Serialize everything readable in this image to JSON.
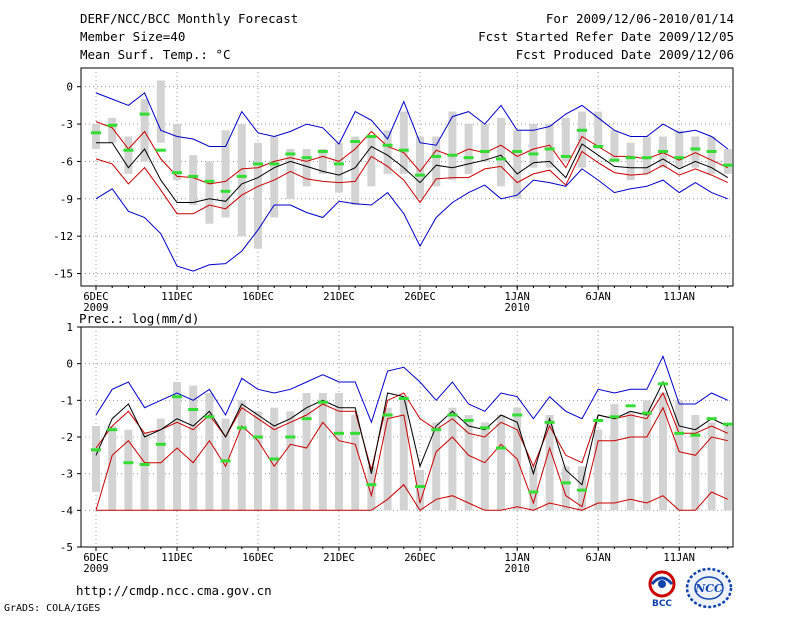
{
  "header": {
    "title": "DERF/NCC/BCC Monthly Forecast",
    "member_size": "Member Size=40",
    "variable": "Mean Surf. Temp.: °C",
    "period": "For 2009/12/06-2010/01/14",
    "start_date": "Fcst Started Refer Date 2009/12/05",
    "produced_date": "Fcst Produced Date 2009/12/06"
  },
  "footer": {
    "url": "http://cmdp.ncc.cma.gov.cn",
    "credit": "GrADS: COLA/IGES",
    "logo_bcc": "BCC",
    "logo_ncc": "NCC"
  },
  "colors": {
    "bar": "#d3d3d3",
    "obs": "#33dd33",
    "mean": "#000000",
    "band_inner": "#cc0000",
    "band_outer": "#0000cc",
    "grid": "#888888"
  },
  "chart_data": [
    {
      "type": "line",
      "title": "Mean Surf. Temp.: °C",
      "ylim": [
        -16,
        1.5
      ],
      "yticks": [
        0,
        -3,
        -6,
        -9,
        -12,
        -15
      ],
      "xlabels": [
        {
          "day": 0,
          "label": "6DEC",
          "sub": "2009"
        },
        {
          "day": 5,
          "label": "11DEC"
        },
        {
          "day": 10,
          "label": "16DEC"
        },
        {
          "day": 15,
          "label": "21DEC"
        },
        {
          "day": 20,
          "label": "26DEC"
        },
        {
          "day": 26,
          "label": "1JAN",
          "sub": "2010"
        },
        {
          "day": 31,
          "label": "6JAN"
        },
        {
          "day": 36,
          "label": "11JAN"
        }
      ],
      "x_days": [
        0,
        1,
        2,
        3,
        4,
        5,
        6,
        7,
        8,
        9,
        10,
        11,
        12,
        13,
        14,
        15,
        16,
        17,
        18,
        19,
        20,
        21,
        22,
        23,
        24,
        25,
        26,
        27,
        28,
        29,
        30,
        31,
        32,
        33,
        34,
        35,
        36,
        37,
        38,
        39
      ],
      "bar_low": [
        -5,
        -4.5,
        -7,
        -6,
        -4.5,
        -7.5,
        -9.5,
        -11,
        -10.5,
        -12,
        -13,
        -10.5,
        -9,
        -8,
        -7,
        -8.5,
        -9.5,
        -8,
        -7,
        -7,
        -9,
        -8,
        -7.5,
        -7,
        -6,
        -8,
        -9,
        -6.5,
        -6.5,
        -6,
        -6.5,
        -5,
        -6,
        -7.5,
        -7,
        -6.5,
        -6.5,
        -6.5,
        -7,
        -7
      ],
      "bar_high": [
        -3,
        -2.5,
        -4,
        -1,
        0.5,
        -3,
        -5.5,
        -6,
        -3.5,
        -3,
        -4.5,
        -4,
        -5,
        -5,
        -5,
        -4.5,
        -4,
        -4,
        -3.5,
        -2,
        -4,
        -4,
        -2,
        -3,
        -3,
        -2.5,
        -3.5,
        -3,
        -3,
        -2.5,
        -2,
        -2,
        -3.5,
        -4.5,
        -4,
        -4,
        -3.5,
        -4,
        -4,
        -5
      ],
      "observation": [
        -3.7,
        -3.1,
        -5.1,
        -2.2,
        -5.1,
        -6.9,
        -7.2,
        -7.6,
        -8.4,
        -7.2,
        -6.2,
        -6.2,
        -5.4,
        -5.7,
        -5.2,
        -6.2,
        -4.4,
        -4,
        -4.7,
        -5.1,
        -7.1,
        -5.6,
        -5.5,
        -5.7,
        -5.2,
        -5.8,
        -5.2,
        -5.4,
        -5,
        -5.6,
        -3.5,
        -4.8,
        -5.9,
        -5.7,
        -5.7,
        -5.2,
        -5.7,
        -5,
        -5.2,
        -6.3
      ],
      "series": [
        {
          "name": "max",
          "color": "#0000cc",
          "values": [
            -0.5,
            -1,
            -1.5,
            -0.5,
            -3.5,
            -4,
            -4.2,
            -4.8,
            -4.8,
            -2,
            -3.7,
            -4,
            -3.6,
            -3,
            -3.3,
            -4.6,
            -2,
            -2.7,
            -4.2,
            -1.2,
            -4.5,
            -4.7,
            -2.4,
            -2,
            -3,
            -1.5,
            -3.5,
            -3.5,
            -3.2,
            -2.2,
            -1.5,
            -2.5,
            -3.5,
            -4,
            -4,
            -3,
            -3.7,
            -3.5,
            -4,
            -5
          ]
        },
        {
          "name": "upper",
          "color": "#cc0000",
          "values": [
            -2.8,
            -3.3,
            -5,
            -3.6,
            -5.8,
            -7.2,
            -7.3,
            -7.8,
            -7.6,
            -6.6,
            -6.5,
            -6,
            -5.7,
            -6,
            -5.6,
            -6,
            -5,
            -3.6,
            -4.8,
            -5.3,
            -6.8,
            -5.1,
            -5.6,
            -5,
            -5.3,
            -4.7,
            -5.6,
            -5,
            -4.7,
            -6.5,
            -4,
            -4.8,
            -5.6,
            -5.6,
            -5.8,
            -5.3,
            -5.9,
            -5.3,
            -5.9,
            -6.5
          ]
        },
        {
          "name": "mean",
          "color": "#000000",
          "values": [
            -4.5,
            -4.5,
            -6.5,
            -5,
            -7.5,
            -9.3,
            -9.3,
            -9,
            -9.2,
            -7.8,
            -7.3,
            -6.5,
            -6,
            -6.4,
            -6.8,
            -7.1,
            -6.5,
            -4.8,
            -5.5,
            -6.5,
            -7.7,
            -6.3,
            -6.5,
            -6.2,
            -5.9,
            -5.5,
            -7,
            -6.1,
            -6,
            -7.3,
            -4.6,
            -5.5,
            -6.4,
            -6.5,
            -6.5,
            -5.8,
            -6.6,
            -6,
            -6.5,
            -7.3
          ]
        },
        {
          "name": "lower",
          "color": "#cc0000",
          "values": [
            -5.8,
            -6.2,
            -7.8,
            -6.5,
            -8.3,
            -10.2,
            -10.2,
            -9.5,
            -9.8,
            -8.7,
            -8,
            -7.5,
            -6.8,
            -7.4,
            -7.6,
            -7.7,
            -7.6,
            -5.6,
            -6.4,
            -7.5,
            -9.3,
            -7.4,
            -7.3,
            -7.3,
            -6.6,
            -6.4,
            -7.7,
            -7,
            -6.7,
            -7.9,
            -5.2,
            -6.1,
            -6.9,
            -7.1,
            -7,
            -6.3,
            -7.1,
            -6.6,
            -7.1,
            -7.7
          ]
        },
        {
          "name": "min",
          "color": "#0000cc",
          "values": [
            -9,
            -8.2,
            -10,
            -10.5,
            -11.8,
            -14.4,
            -14.8,
            -14.3,
            -14.2,
            -13.2,
            -11.5,
            -9.5,
            -9.5,
            -10.1,
            -10.5,
            -9.2,
            -9.4,
            -9.5,
            -8.5,
            -10.2,
            -12.8,
            -10.5,
            -9.3,
            -8.5,
            -7.9,
            -9,
            -8.7,
            -7.5,
            -7.7,
            -8,
            -6.6,
            -7.5,
            -8.5,
            -8.2,
            -8,
            -7.5,
            -8.5,
            -7.7,
            -8.5,
            -9
          ]
        }
      ]
    },
    {
      "type": "line",
      "title": "Prec.: log(mm/d)",
      "ylim": [
        -5,
        1
      ],
      "yticks": [
        1,
        0,
        -1,
        -2,
        -3,
        -4,
        -5
      ],
      "xlabels": [
        {
          "day": 0,
          "label": "6DEC",
          "sub": "2009"
        },
        {
          "day": 5,
          "label": "11DEC"
        },
        {
          "day": 10,
          "label": "16DEC"
        },
        {
          "day": 15,
          "label": "21DEC"
        },
        {
          "day": 20,
          "label": "26DEC"
        },
        {
          "day": 26,
          "label": "1JAN",
          "sub": "2010"
        },
        {
          "day": 31,
          "label": "6JAN"
        },
        {
          "day": 36,
          "label": "11JAN"
        }
      ],
      "x_days": [
        0,
        1,
        2,
        3,
        4,
        5,
        6,
        7,
        8,
        9,
        10,
        11,
        12,
        13,
        14,
        15,
        16,
        17,
        18,
        19,
        20,
        21,
        22,
        23,
        24,
        25,
        26,
        27,
        28,
        29,
        30,
        31,
        32,
        33,
        34,
        35,
        36,
        37,
        38,
        39
      ],
      "bar_low": [
        -3.5,
        -4,
        -4,
        -4,
        -4,
        -4,
        -4,
        -4,
        -4,
        -4,
        -4,
        -4,
        -4,
        -4,
        -4,
        -4,
        -4,
        -4,
        -4,
        -4,
        -4,
        -4,
        -4,
        -4,
        -4,
        -4,
        -4,
        -4,
        -4,
        -4,
        -4,
        -4,
        -4,
        -4,
        -4,
        -4,
        -4,
        -4,
        -4,
        -4
      ],
      "bar_high": [
        -1.7,
        -1.7,
        -1.8,
        -1.9,
        -1.5,
        -0.5,
        -0.6,
        -0.8,
        -1.5,
        -1,
        -1.3,
        -1.2,
        -1.3,
        -0.8,
        -0.8,
        -0.8,
        -1.4,
        -2.8,
        -1.2,
        -0.9,
        -2.9,
        -1.6,
        -1.2,
        -1.4,
        -1.6,
        -1.4,
        -1.2,
        -2.8,
        -1.4,
        -2.8,
        -2.8,
        -1.8,
        -1.1,
        -1.3,
        -1,
        -0.8,
        -1,
        -1.4,
        -1.6,
        -1.7
      ],
      "observation": [
        -2.35,
        -1.8,
        -2.7,
        -2.75,
        -2.2,
        -0.9,
        -1.25,
        -1.45,
        -2.65,
        -1.75,
        -2.0,
        -2.6,
        -2.0,
        -1.5,
        -1.05,
        -1.9,
        -1.9,
        -3.3,
        -1.4,
        -0.95,
        -3.35,
        -1.8,
        -1.4,
        -1.55,
        -1.75,
        -2.3,
        -1.4,
        -3.5,
        -1.6,
        -3.25,
        -3.45,
        -1.55,
        -1.45,
        -1.15,
        -1.35,
        -0.55,
        -1.9,
        -1.95,
        -1.5,
        -1.65
      ],
      "series": [
        {
          "name": "max",
          "color": "#0000cc",
          "values": [
            -1.4,
            -0.7,
            -0.5,
            -1.2,
            -1,
            -0.8,
            -1,
            -0.7,
            -1.4,
            -0.4,
            -0.7,
            -0.8,
            -0.7,
            -0.5,
            -0.3,
            -0.5,
            -0.5,
            -1.6,
            -0.2,
            -0.1,
            -0.5,
            -1,
            -0.5,
            -1.1,
            -1.3,
            -0.8,
            -0.9,
            -1.5,
            -0.9,
            -1.3,
            -1.5,
            -0.7,
            -0.8,
            -0.7,
            -0.7,
            0.2,
            -1.1,
            -1.1,
            -0.8,
            -1
          ]
        },
        {
          "name": "upper",
          "color": "#cc0000",
          "values": [
            -2.3,
            -1.7,
            -1.3,
            -1.9,
            -1.8,
            -1.6,
            -1.8,
            -1.4,
            -2,
            -1.2,
            -1.5,
            -1.8,
            -1.6,
            -1.4,
            -1.1,
            -1.3,
            -1.3,
            -2.9,
            -1,
            -0.8,
            -1.5,
            -1.8,
            -1.5,
            -1.9,
            -2,
            -1.6,
            -1.8,
            -2.8,
            -1.7,
            -2.5,
            -2.7,
            -1.4,
            -1.5,
            -1.4,
            -1.5,
            -0.8,
            -1.9,
            -1.9,
            -1.7,
            -1.9
          ]
        },
        {
          "name": "mean",
          "color": "#000000",
          "values": [
            -2.5,
            -1.5,
            -1.1,
            -2,
            -1.8,
            -1.5,
            -1.7,
            -1.3,
            -2,
            -1.1,
            -1.4,
            -1.7,
            -1.5,
            -1.2,
            -1,
            -1.2,
            -1.2,
            -3,
            -0.8,
            -0.9,
            -2.8,
            -1.7,
            -1.3,
            -1.7,
            -1.8,
            -1.4,
            -1.6,
            -3,
            -1.5,
            -2.9,
            -3.3,
            -1.4,
            -1.5,
            -1.3,
            -1.4,
            -0.5,
            -1.7,
            -1.8,
            -1.5,
            -1.7
          ]
        },
        {
          "name": "lower",
          "color": "#cc0000",
          "values": [
            -4,
            -2.5,
            -2.1,
            -2.7,
            -2.7,
            -2.3,
            -2.7,
            -2.1,
            -2.8,
            -1.7,
            -2.1,
            -2.8,
            -2.2,
            -2.3,
            -1.6,
            -2.1,
            -2.2,
            -3.6,
            -1.5,
            -1.4,
            -3.8,
            -2.4,
            -2,
            -2.5,
            -2.7,
            -2.2,
            -2.6,
            -3.8,
            -2.3,
            -3.6,
            -3.9,
            -2.1,
            -2.1,
            -2,
            -2,
            -1.2,
            -2.4,
            -2.5,
            -2,
            -2.1
          ]
        },
        {
          "name": "min",
          "color": "#cc0000",
          "values": [
            -4,
            -4,
            -4,
            -4,
            -4,
            -4,
            -4,
            -4,
            -4,
            -4,
            -4,
            -4,
            -4,
            -4,
            -4,
            -4,
            -4,
            -4,
            -3.7,
            -3.3,
            -4,
            -3.7,
            -3.6,
            -3.8,
            -4,
            -4,
            -3.9,
            -4,
            -3.8,
            -3.9,
            -4,
            -3.8,
            -3.8,
            -3.7,
            -3.8,
            -3.6,
            -4,
            -4,
            -3.5,
            -3.7
          ]
        }
      ]
    }
  ]
}
